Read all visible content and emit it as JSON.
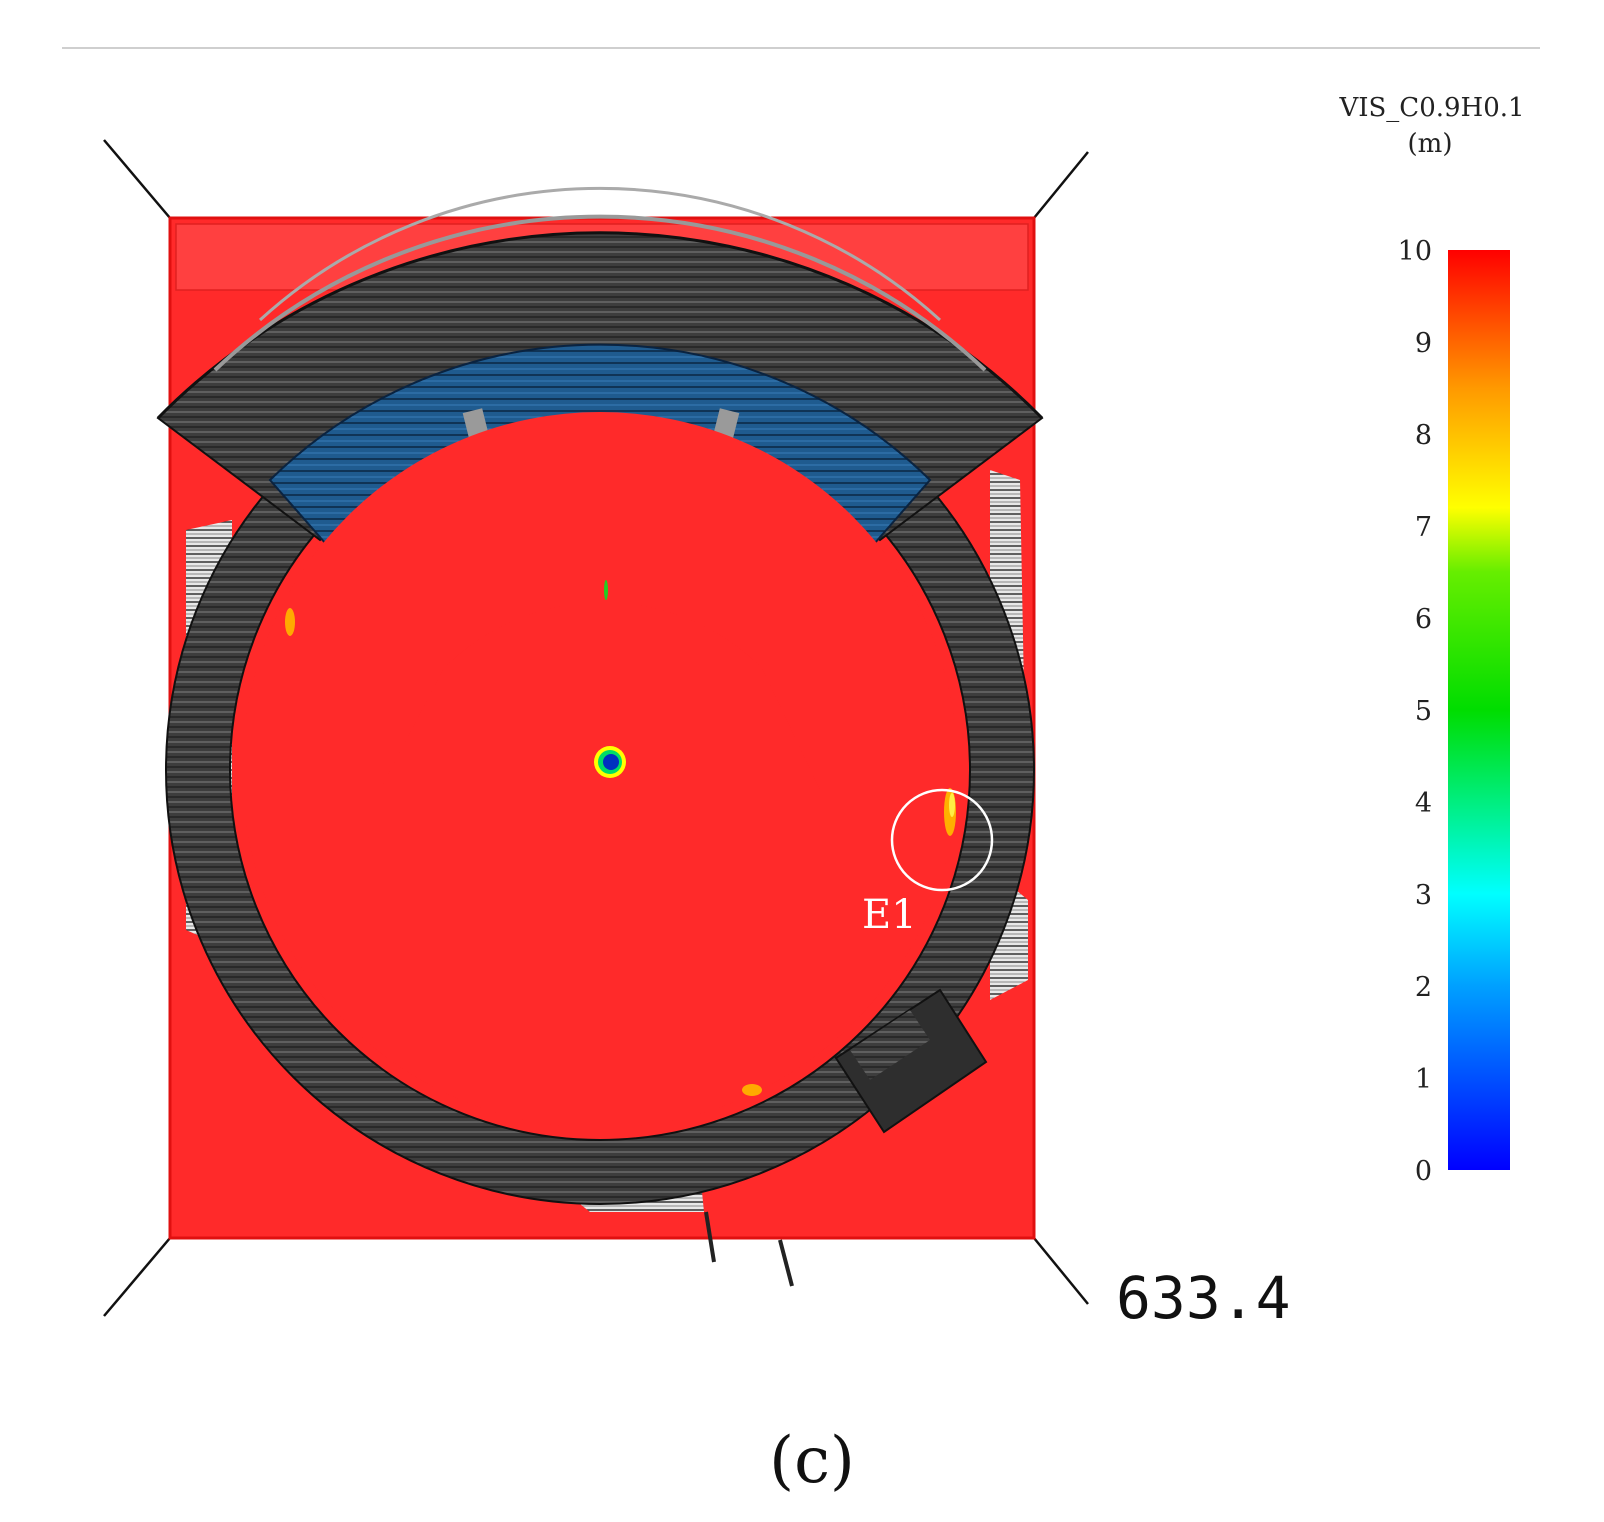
{
  "legend": {
    "title_line1": "VIS_C0.9H0.1",
    "title_line2": "(m)",
    "ticks": [
      "10",
      "9",
      "8",
      "7",
      "6",
      "5",
      "4",
      "3",
      "2",
      "1",
      "0"
    ],
    "min": 0,
    "max": 10,
    "colors": [
      "#0000ff",
      "#00ffff",
      "#00ff00",
      "#ffff00",
      "#ff0000"
    ]
  },
  "scene": {
    "domain_color": "#ff2a2a",
    "lower_tier_color": "#1e5a8c",
    "middle_tier_color": "#a01010",
    "structure_color": "#3a3a3a"
  },
  "annotation": {
    "label": "E1"
  },
  "time_stamp": "633.4",
  "caption": "(c)"
}
